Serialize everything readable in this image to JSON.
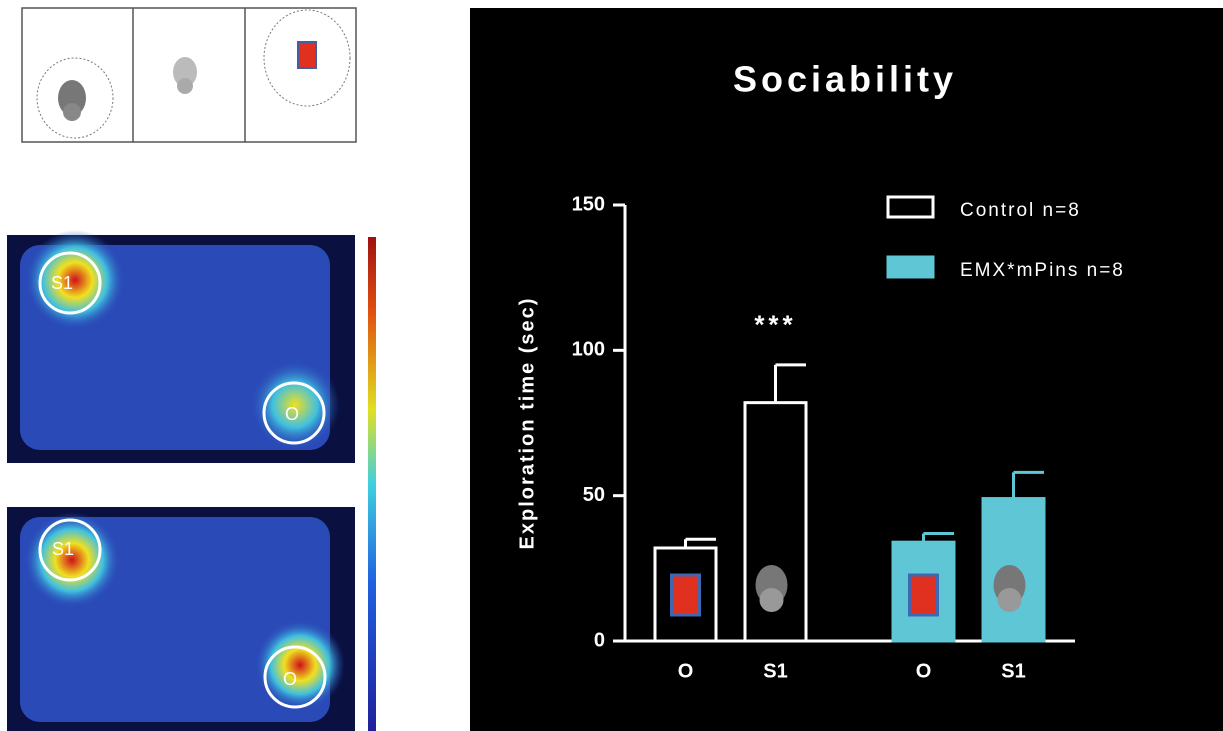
{
  "heatmaps": [
    {
      "social_label": "S1",
      "object_label": "O"
    },
    {
      "social_label": "S1",
      "object_label": "O"
    }
  ],
  "chart_data": {
    "type": "bar",
    "title": "Sociability",
    "y_label": "Exploration time (sec)",
    "categories": [
      "O",
      "S1"
    ],
    "series": [
      {
        "name": "Control n=8",
        "color": "#ffffff",
        "filled": false,
        "values": [
          32,
          82
        ],
        "errors": [
          3,
          13
        ]
      },
      {
        "name": "EMX*mPins n=8",
        "color": "#5fc6d6",
        "filled": true,
        "values": [
          34,
          49
        ],
        "errors": [
          3,
          9
        ]
      }
    ],
    "annotations": [
      {
        "text": "***",
        "series": 0,
        "category": 1
      }
    ],
    "ylim": [
      0,
      150
    ],
    "yticks": [
      0,
      50,
      100,
      150
    ],
    "legend": "top-right",
    "background": "#000000"
  }
}
